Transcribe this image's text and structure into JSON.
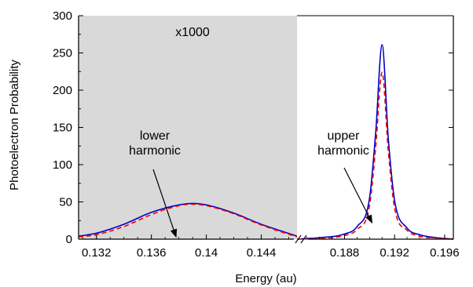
{
  "chart_data": {
    "type": "line",
    "title": "",
    "xlabel": "Energy (au)",
    "ylabel": "Photoelectron Probability",
    "ylim": [
      0,
      300
    ],
    "yticks": [
      "0",
      "50",
      "100",
      "150",
      "200",
      "250",
      "300"
    ],
    "broken_x_axis": true,
    "panels": [
      {
        "xlim": [
          0.1307,
          0.1466
        ],
        "xticks": [
          "0.132",
          "0.136",
          "0.14",
          "0.144"
        ],
        "shaded": true,
        "scale_note": "x1000"
      },
      {
        "xlim": [
          0.1842,
          0.1967
        ],
        "xticks": [
          "0.188",
          "0.192",
          "0.196"
        ],
        "shaded": false
      }
    ],
    "series": [
      {
        "color": "#0000cc",
        "style": "solid",
        "segments": [
          {
            "x": [
              0.1307,
              0.132,
              0.134,
              0.136,
              0.138,
              0.139,
              0.14,
              0.142,
              0.144,
              0.1466
            ],
            "y": [
              4,
              8,
              20,
              36,
              46,
              48,
              46,
              35,
              20,
              4
            ]
          },
          {
            "x": [
              0.1842,
              0.186,
              0.188,
              0.189,
              0.19,
              0.1905,
              0.191,
              0.1915,
              0.192,
              0.193,
              0.194,
              0.196,
              0.1967
            ],
            "y": [
              0,
              2,
              7,
              17,
              55,
              145,
              261,
              135,
              52,
              15,
              6,
              1,
              0
            ]
          }
        ]
      },
      {
        "color": "#ee0000",
        "style": "dashed",
        "segments": [
          {
            "x": [
              0.1307,
              0.132,
              0.134,
              0.136,
              0.138,
              0.139,
              0.14,
              0.142,
              0.144,
              0.1466
            ],
            "y": [
              3,
              6,
              17,
              33,
              45,
              47,
              45,
              34,
              19,
              3
            ]
          },
          {
            "x": [
              0.1842,
              0.186,
              0.188,
              0.189,
              0.19,
              0.1905,
              0.191,
              0.1915,
              0.192,
              0.193,
              0.194,
              0.196,
              0.1967
            ],
            "y": [
              0,
              1,
              5,
              13,
              45,
              125,
              224,
              118,
              42,
              12,
              4,
              1,
              0
            ]
          }
        ]
      }
    ],
    "annotations": [
      {
        "lines": [
          "lower",
          "harmonic"
        ],
        "points_to": [
          0.1378,
          3
        ]
      },
      {
        "lines": [
          "upper",
          "harmonic"
        ],
        "points_to": [
          0.1902,
          22
        ]
      }
    ]
  }
}
